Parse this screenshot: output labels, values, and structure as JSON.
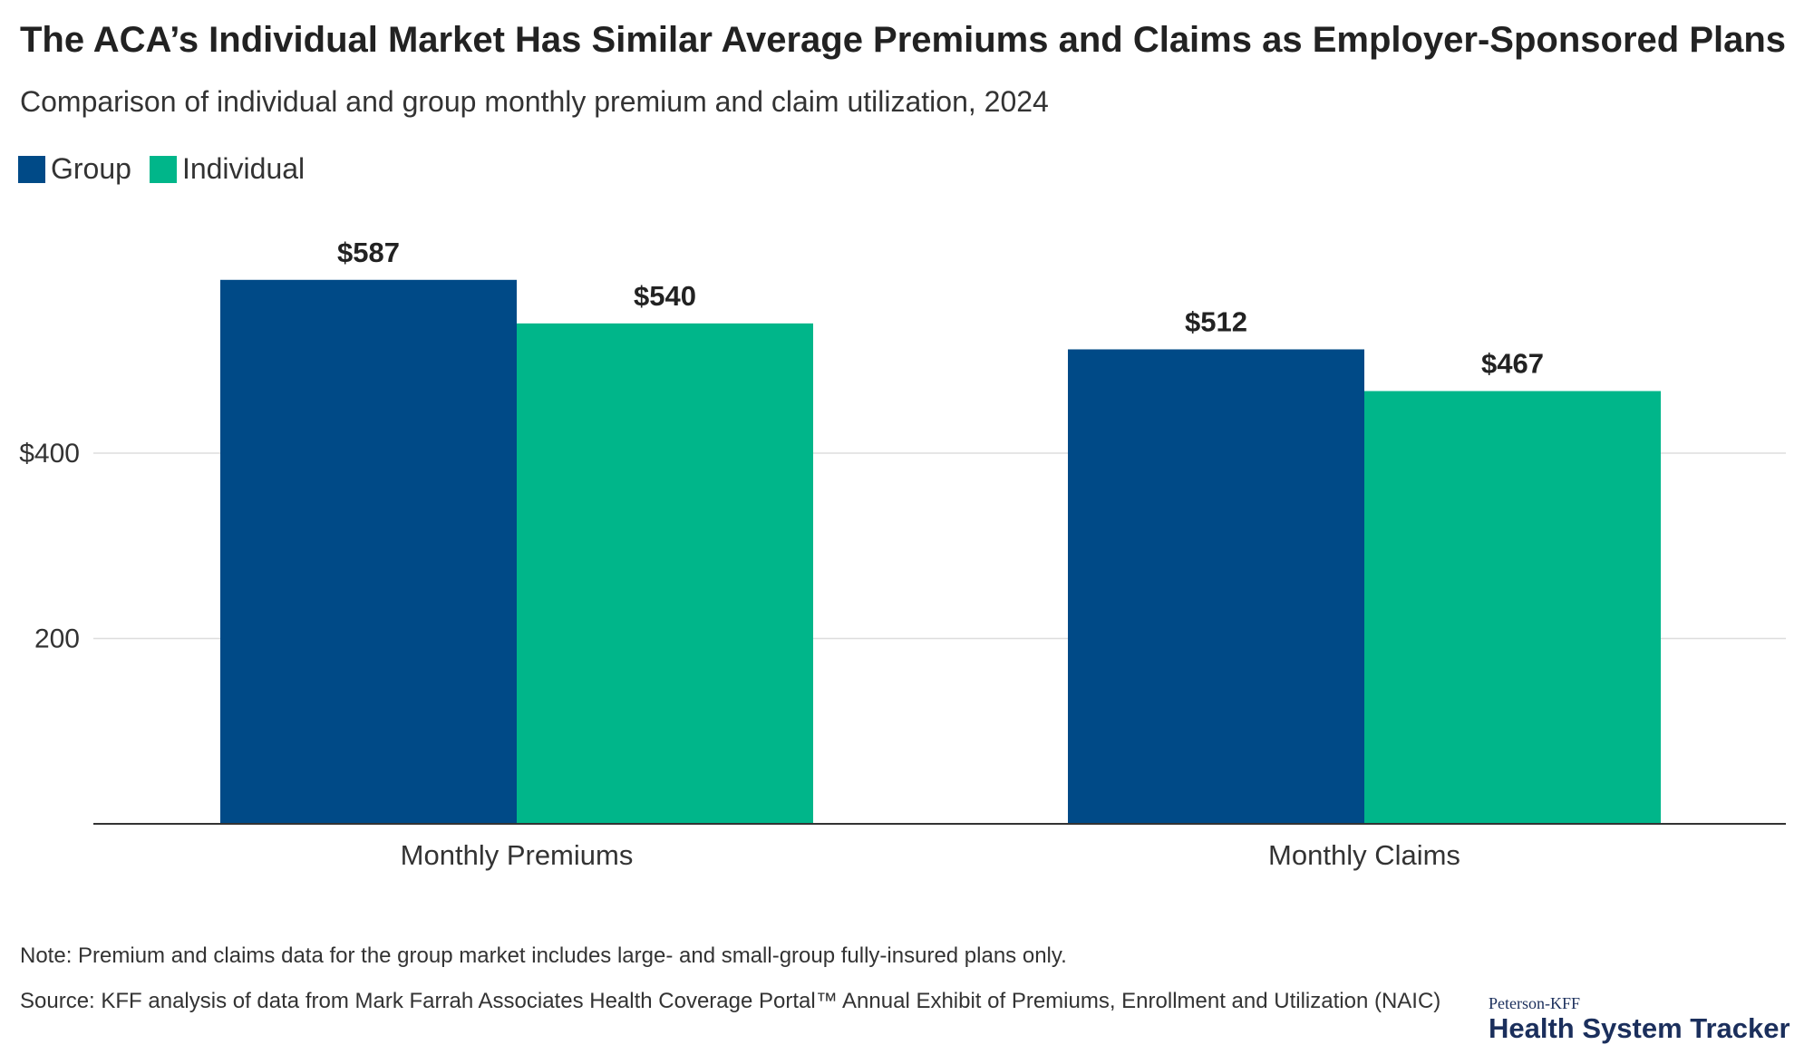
{
  "title": "The ACA’s Individual Market Has Similar Average Premiums and Claims as Employer-Sponsored Plans",
  "subtitle": "Comparison of individual and group monthly premium and claim utilization, 2024",
  "legend": [
    {
      "label": "Group",
      "color": "#004a87"
    },
    {
      "label": "Individual",
      "color": "#00b68a"
    }
  ],
  "chart_data": {
    "type": "bar",
    "categories": [
      "Monthly Premiums",
      "Monthly Claims"
    ],
    "series": [
      {
        "name": "Group",
        "color": "#004a87",
        "values": [
          587,
          512
        ],
        "labels": [
          "$587",
          "$512"
        ]
      },
      {
        "name": "Individual",
        "color": "#00b68a",
        "values": [
          540,
          467
        ],
        "labels": [
          "$540",
          "$467"
        ]
      }
    ],
    "yticks": [
      {
        "value": 200,
        "label": "200"
      },
      {
        "value": 400,
        "label": "$400"
      }
    ],
    "ylim": [
      0,
      700
    ],
    "grid": true,
    "legend_position": "top-left",
    "gridline_color": "#dddddd",
    "axis_color": "#333333"
  },
  "note": "Note: Premium and claims data for the group market includes large- and small-group fully-insured plans only.",
  "source": "Source: KFF analysis of data from Mark Farrah Associates Health Coverage Portal™ Annual Exhibit of Premiums, Enrollment and Utilization (NAIC)",
  "logo": {
    "line1": "Peterson-KFF",
    "line2": "Health System Tracker",
    "color": "#1b2f5c"
  }
}
